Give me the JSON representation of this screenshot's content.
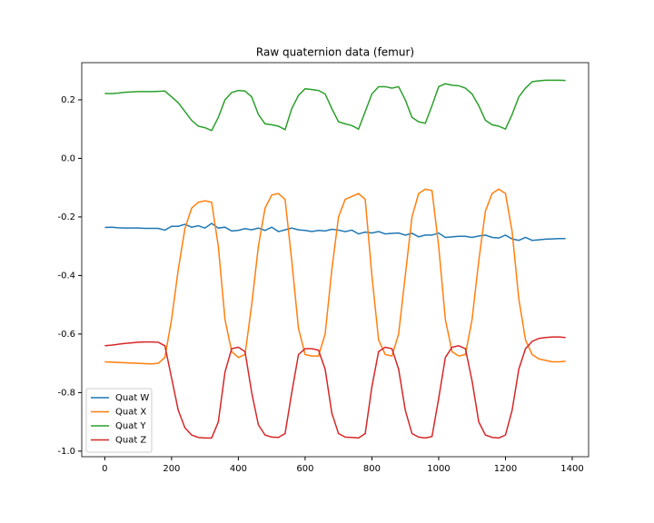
{
  "chart_data": {
    "type": "line",
    "title": "Raw quaternion data (femur)",
    "x": [
      0,
      20,
      40,
      60,
      80,
      100,
      120,
      140,
      160,
      180,
      200,
      220,
      240,
      260,
      280,
      300,
      320,
      340,
      360,
      380,
      400,
      420,
      440,
      460,
      480,
      500,
      520,
      540,
      560,
      580,
      600,
      620,
      640,
      660,
      680,
      700,
      720,
      740,
      760,
      780,
      800,
      820,
      840,
      860,
      880,
      900,
      920,
      940,
      960,
      980,
      1000,
      1020,
      1040,
      1060,
      1080,
      1100,
      1120,
      1140,
      1160,
      1180,
      1200,
      1220,
      1240,
      1260,
      1280,
      1300,
      1320,
      1340,
      1360,
      1380
    ],
    "series": [
      {
        "name": "Quat W",
        "color": "#1f77b4",
        "values": [
          -0.236,
          -0.235,
          -0.237,
          -0.238,
          -0.238,
          -0.238,
          -0.239,
          -0.239,
          -0.239,
          -0.245,
          -0.232,
          -0.232,
          -0.225,
          -0.235,
          -0.23,
          -0.238,
          -0.222,
          -0.238,
          -0.235,
          -0.248,
          -0.246,
          -0.24,
          -0.244,
          -0.238,
          -0.246,
          -0.235,
          -0.25,
          -0.244,
          -0.238,
          -0.244,
          -0.246,
          -0.25,
          -0.246,
          -0.248,
          -0.242,
          -0.245,
          -0.25,
          -0.245,
          -0.258,
          -0.252,
          -0.255,
          -0.25,
          -0.258,
          -0.256,
          -0.255,
          -0.262,
          -0.256,
          -0.268,
          -0.262,
          -0.262,
          -0.255,
          -0.27,
          -0.268,
          -0.266,
          -0.266,
          -0.27,
          -0.265,
          -0.262,
          -0.27,
          -0.272,
          -0.262,
          -0.275,
          -0.28,
          -0.27,
          -0.28,
          -0.278,
          -0.276,
          -0.275,
          -0.274,
          -0.274
        ]
      },
      {
        "name": "Quat X",
        "color": "#ff7f0e",
        "values": [
          -0.695,
          -0.696,
          -0.697,
          -0.698,
          -0.699,
          -0.7,
          -0.701,
          -0.702,
          -0.7,
          -0.68,
          -0.55,
          -0.38,
          -0.24,
          -0.17,
          -0.15,
          -0.145,
          -0.15,
          -0.3,
          -0.55,
          -0.66,
          -0.68,
          -0.67,
          -0.5,
          -0.3,
          -0.17,
          -0.125,
          -0.12,
          -0.14,
          -0.35,
          -0.58,
          -0.67,
          -0.675,
          -0.675,
          -0.6,
          -0.38,
          -0.2,
          -0.14,
          -0.13,
          -0.12,
          -0.14,
          -0.4,
          -0.62,
          -0.67,
          -0.675,
          -0.6,
          -0.4,
          -0.2,
          -0.12,
          -0.105,
          -0.11,
          -0.3,
          -0.55,
          -0.66,
          -0.675,
          -0.67,
          -0.55,
          -0.35,
          -0.18,
          -0.12,
          -0.105,
          -0.12,
          -0.25,
          -0.48,
          -0.62,
          -0.67,
          -0.685,
          -0.69,
          -0.695,
          -0.695,
          -0.693
        ]
      },
      {
        "name": "Quat Y",
        "color": "#2ca02c",
        "values": [
          0.222,
          0.221,
          0.223,
          0.226,
          0.227,
          0.228,
          0.228,
          0.228,
          0.229,
          0.23,
          0.21,
          0.19,
          0.16,
          0.13,
          0.11,
          0.105,
          0.095,
          0.14,
          0.2,
          0.225,
          0.232,
          0.23,
          0.21,
          0.15,
          0.118,
          0.115,
          0.11,
          0.098,
          0.17,
          0.215,
          0.238,
          0.235,
          0.232,
          0.22,
          0.17,
          0.125,
          0.118,
          0.112,
          0.1,
          0.16,
          0.22,
          0.245,
          0.245,
          0.24,
          0.245,
          0.2,
          0.14,
          0.125,
          0.12,
          0.18,
          0.245,
          0.255,
          0.25,
          0.248,
          0.24,
          0.22,
          0.18,
          0.13,
          0.115,
          0.11,
          0.1,
          0.15,
          0.21,
          0.24,
          0.262,
          0.265,
          0.267,
          0.267,
          0.267,
          0.266
        ]
      },
      {
        "name": "Quat Z",
        "color": "#d62728",
        "values": [
          -0.64,
          -0.638,
          -0.635,
          -0.632,
          -0.63,
          -0.628,
          -0.627,
          -0.627,
          -0.628,
          -0.64,
          -0.75,
          -0.86,
          -0.92,
          -0.945,
          -0.953,
          -0.955,
          -0.955,
          -0.9,
          -0.73,
          -0.65,
          -0.645,
          -0.66,
          -0.8,
          -0.91,
          -0.945,
          -0.952,
          -0.953,
          -0.94,
          -0.8,
          -0.67,
          -0.65,
          -0.65,
          -0.655,
          -0.72,
          -0.87,
          -0.94,
          -0.952,
          -0.953,
          -0.955,
          -0.94,
          -0.78,
          -0.66,
          -0.645,
          -0.65,
          -0.72,
          -0.86,
          -0.94,
          -0.952,
          -0.955,
          -0.95,
          -0.82,
          -0.68,
          -0.645,
          -0.64,
          -0.65,
          -0.76,
          -0.9,
          -0.945,
          -0.953,
          -0.955,
          -0.945,
          -0.86,
          -0.72,
          -0.65,
          -0.625,
          -0.615,
          -0.612,
          -0.61,
          -0.61,
          -0.612
        ]
      }
    ],
    "xlim": [
      -69,
      1449
    ],
    "xticks": [
      0,
      200,
      400,
      600,
      800,
      1000,
      1200,
      1400
    ],
    "ylim": [
      -1.019,
      0.327
    ],
    "yticks": [
      {
        "value": -1.0,
        "label": "-1.0"
      },
      -0.8,
      -0.6,
      -0.4,
      -0.2,
      {
        "value": 0.0,
        "label": "0.0"
      },
      0.2
    ],
    "legend": "lower left"
  }
}
